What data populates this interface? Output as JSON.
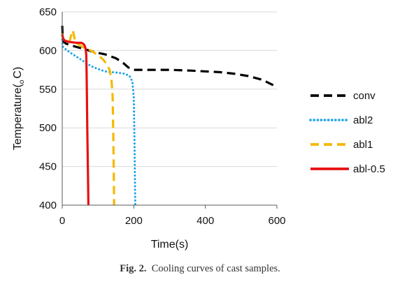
{
  "chart_data": {
    "type": "line",
    "xlabel": "Time(s)",
    "ylabel": "Temperature(",
    "ylabel_sub": "o",
    "ylabel_tail": "C)",
    "xlim": [
      0,
      600
    ],
    "ylim": [
      400,
      650
    ],
    "xticks": [
      0,
      200,
      400,
      600
    ],
    "yticks": [
      400,
      450,
      500,
      550,
      600,
      650
    ],
    "grid": "horizontal",
    "legend_position": "right",
    "series": [
      {
        "name": "conv",
        "color": "#000000",
        "style": "dashed",
        "points": [
          [
            0,
            632
          ],
          [
            1,
            620
          ],
          [
            3,
            612
          ],
          [
            10,
            609
          ],
          [
            30,
            606
          ],
          [
            60,
            602
          ],
          [
            90,
            598
          ],
          [
            120,
            595
          ],
          [
            150,
            590
          ],
          [
            170,
            584
          ],
          [
            185,
            578
          ],
          [
            200,
            575
          ],
          [
            230,
            575
          ],
          [
            300,
            575
          ],
          [
            360,
            574
          ],
          [
            400,
            573
          ],
          [
            440,
            572
          ],
          [
            480,
            570
          ],
          [
            520,
            567
          ],
          [
            560,
            562
          ],
          [
            595,
            554
          ]
        ]
      },
      {
        "name": "abl2",
        "color": "#1aa3e8",
        "style": "dotted",
        "points": [
          [
            0,
            614
          ],
          [
            2,
            605
          ],
          [
            6,
            603
          ],
          [
            20,
            598
          ],
          [
            40,
            592
          ],
          [
            60,
            586
          ],
          [
            80,
            580
          ],
          [
            100,
            576
          ],
          [
            120,
            573
          ],
          [
            140,
            572
          ],
          [
            160,
            571
          ],
          [
            175,
            570
          ],
          [
            188,
            567
          ],
          [
            196,
            560
          ],
          [
            200,
            540
          ],
          [
            202,
            480
          ],
          [
            204,
            400
          ]
        ]
      },
      {
        "name": "abl1",
        "color": "#f5b800",
        "style": "dashed",
        "points": [
          [
            0,
            622
          ],
          [
            3,
            615
          ],
          [
            10,
            612
          ],
          [
            20,
            610
          ],
          [
            25,
            620
          ],
          [
            30,
            626
          ],
          [
            36,
            612
          ],
          [
            45,
            608
          ],
          [
            60,
            604
          ],
          [
            80,
            600
          ],
          [
            100,
            594
          ],
          [
            115,
            588
          ],
          [
            125,
            582
          ],
          [
            133,
            574
          ],
          [
            138,
            560
          ],
          [
            141,
            540
          ],
          [
            143,
            480
          ],
          [
            145,
            400
          ]
        ]
      },
      {
        "name": "abl-0.5",
        "color": "#e81010",
        "style": "solid",
        "points": [
          [
            0,
            621
          ],
          [
            2,
            616
          ],
          [
            6,
            613
          ],
          [
            20,
            611
          ],
          [
            40,
            610
          ],
          [
            52,
            610
          ],
          [
            58,
            609
          ],
          [
            62,
            607
          ],
          [
            65,
            603
          ],
          [
            67,
            595
          ],
          [
            68,
            575
          ],
          [
            69,
            540
          ],
          [
            70,
            500
          ],
          [
            71,
            470
          ],
          [
            72,
            440
          ],
          [
            73,
            400
          ]
        ]
      }
    ]
  },
  "caption": {
    "label": "Fig. 2.",
    "text": "Cooling curves of cast samples."
  }
}
